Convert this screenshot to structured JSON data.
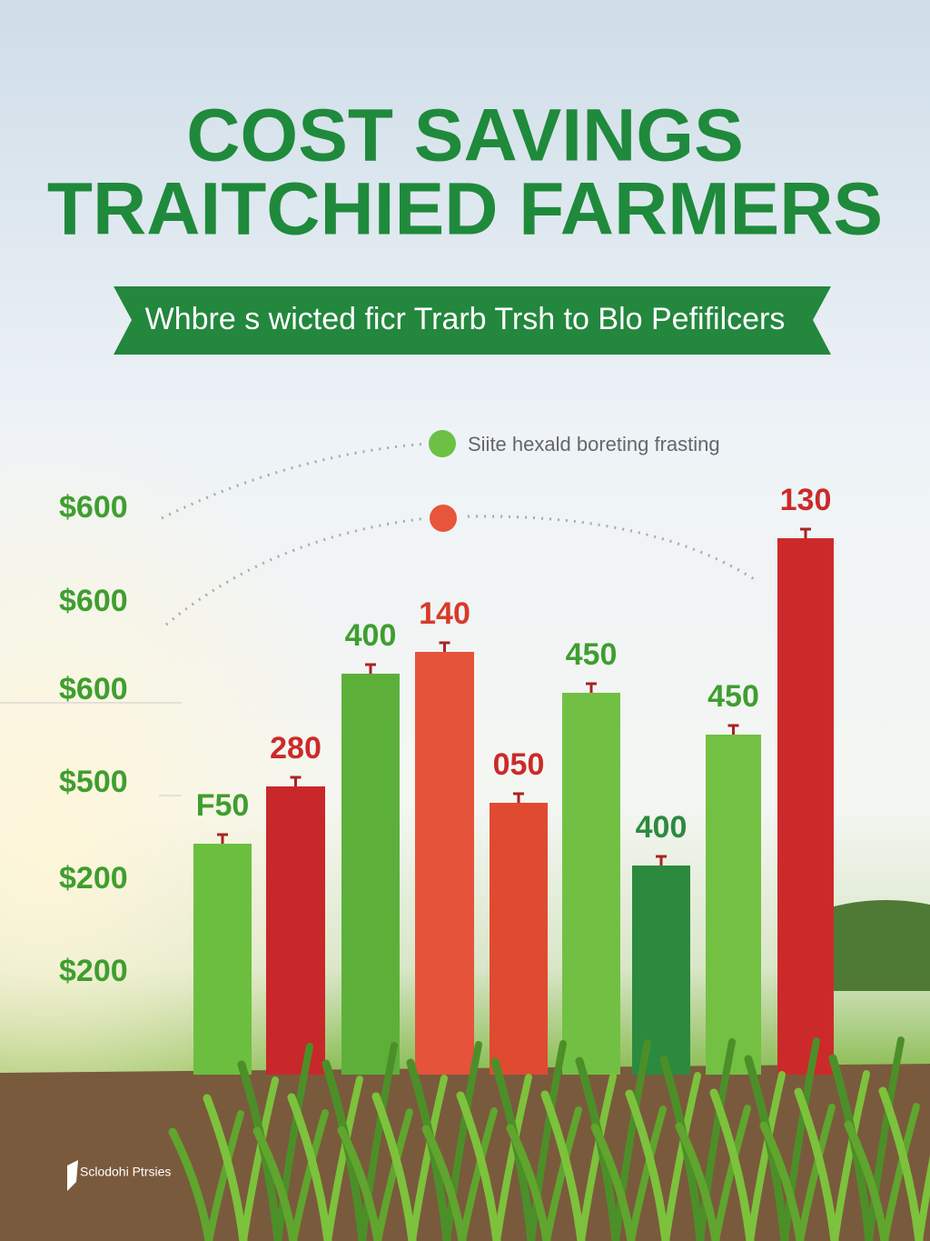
{
  "header": {
    "title_lines": [
      "COST SAVINGS",
      "TRAITCHIED FARMERS"
    ],
    "banner": "Whbre s wicted ficr Trarb Trsh to Blo Pefifilcers"
  },
  "legend": [
    "Siite hexald boreting frasting",
    ""
  ],
  "axis_labels": [
    "$600",
    "$600",
    "$600",
    "$500",
    "$200",
    "$200"
  ],
  "bar_labels": [
    "F50",
    "280",
    "400",
    "140",
    "050",
    "450",
    "400",
    "450",
    "130"
  ],
  "footer": "Sclodohi Ptrsies"
}
